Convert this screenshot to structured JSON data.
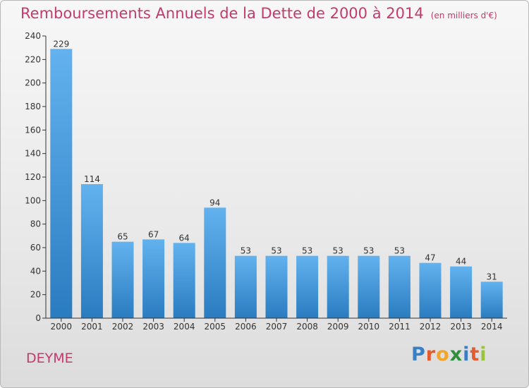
{
  "title": "Remboursements Annuels de la Dette de 2000 à 2014",
  "subtitle": "(en milliers d'€)",
  "commune": "DEYME",
  "logo": {
    "letters": [
      "P",
      "r",
      "o",
      "x",
      "i",
      "t",
      "i"
    ],
    "colors": [
      "#3a7fc4",
      "#e35b2f",
      "#f2a52b",
      "#2f8f3a",
      "#3a7fc4",
      "#e35b2f",
      "#9ac33a"
    ]
  },
  "colors": {
    "bar_top": "#63b2ef",
    "bar_bottom": "#2a7cc0",
    "axis": "#333333",
    "label": "#333333",
    "title": "#c33a6c"
  },
  "chart_data": {
    "type": "bar",
    "categories": [
      "2000",
      "2001",
      "2002",
      "2003",
      "2004",
      "2005",
      "2006",
      "2007",
      "2008",
      "2009",
      "2010",
      "2011",
      "2012",
      "2013",
      "2014"
    ],
    "values": [
      229,
      114,
      65,
      67,
      64,
      94,
      53,
      53,
      53,
      53,
      53,
      53,
      47,
      44,
      31
    ],
    "title": "Remboursements Annuels de la Dette de 2000 à 2014",
    "subtitle": "(en milliers d'€)",
    "xlabel": "",
    "ylabel": "",
    "ylim": [
      0,
      240
    ],
    "yticks": [
      0,
      20,
      40,
      60,
      80,
      100,
      120,
      140,
      160,
      180,
      200,
      220,
      240
    ],
    "grid": false,
    "legend": "none"
  }
}
